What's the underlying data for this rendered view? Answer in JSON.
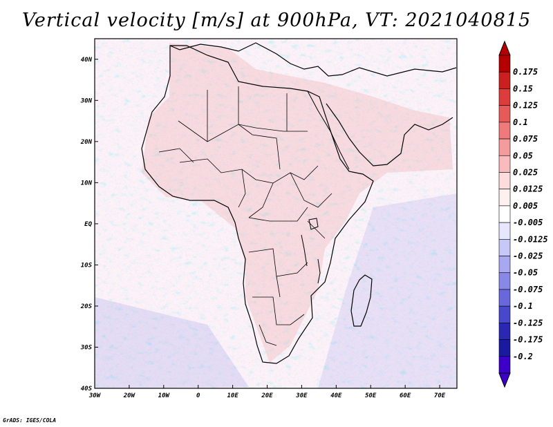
{
  "title": "Vertical velocity [m/s] at 900hPa, VT: 2021040815",
  "credit": "GrADS: IGES/COLA",
  "map": {
    "lat_ticks": [
      "40N",
      "30N",
      "20N",
      "10N",
      "EQ",
      "10S",
      "20S",
      "30S",
      "40S"
    ],
    "lon_ticks": [
      "30W",
      "20W",
      "10W",
      "0",
      "10E",
      "20E",
      "30E",
      "40E",
      "50E",
      "60E",
      "70E"
    ],
    "lat_range": [
      -40,
      45
    ],
    "lon_range": [
      -30,
      75
    ]
  },
  "colorbar": {
    "levels": [
      "0.175",
      "0.15",
      "0.125",
      "0.1",
      "0.075",
      "0.05",
      "0.025",
      "0.0125",
      "0.005",
      "-0.005",
      "-0.0125",
      "-0.025",
      "-0.05",
      "-0.075",
      "-0.1",
      "-0.125",
      "-0.175",
      "-0.2"
    ],
    "colors": [
      "#b40000",
      "#cc2020",
      "#dc3c3c",
      "#e65a5a",
      "#ee7a7a",
      "#f49c9c",
      "#f8bcbc",
      "#fcdcdc",
      "#fff0f0",
      "#ffffff",
      "#e6e6ff",
      "#c8c8f8",
      "#a8a8f0",
      "#8888e6",
      "#6868dc",
      "#4848cc",
      "#2828b4",
      "#1a1aa0",
      "#3c00c8"
    ]
  },
  "colors": {
    "land_dark": "#2a2a2a",
    "border": "#000000",
    "background": "#ffffff"
  }
}
